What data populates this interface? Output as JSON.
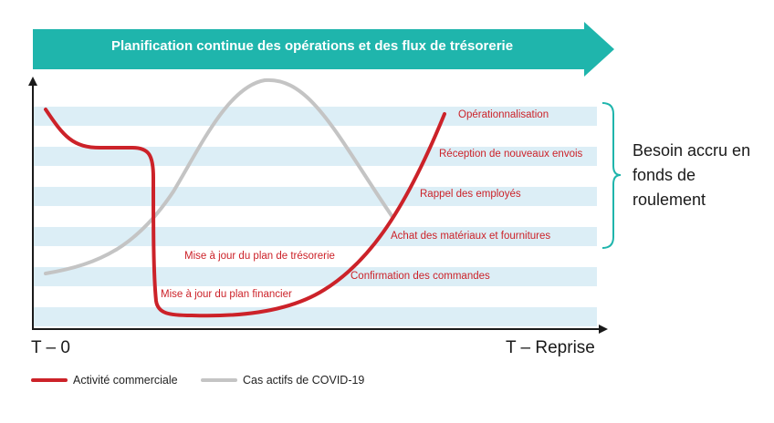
{
  "banner": {
    "text": "Planification continue des opérations et des flux de trésorerie",
    "color": "#1fb5ac"
  },
  "axis": {
    "x_start": "T – 0",
    "x_end": "T – Reprise"
  },
  "brace_label": "Besoin accru en fonds de roulement",
  "labels": {
    "operationnalisation": "Opérationnalisation",
    "reception": "Réception de nouveaux envois",
    "rappel": "Rappel des employés",
    "achat": "Achat des matériaux et fournitures",
    "confirmation": "Confirmation des commandes",
    "plan_tresorerie": "Mise à jour du plan de trésorerie",
    "plan_financier": "Mise à jour du plan financier"
  },
  "legend": {
    "activity": "Activité commerciale",
    "covid": "Cas actifs de COVID-19"
  },
  "colors": {
    "activity": "#cc2229",
    "covid": "#c4c4c4",
    "stripe": "#dceef6",
    "brace": "#1fb5ac",
    "axis": "#1a1a1a"
  }
}
